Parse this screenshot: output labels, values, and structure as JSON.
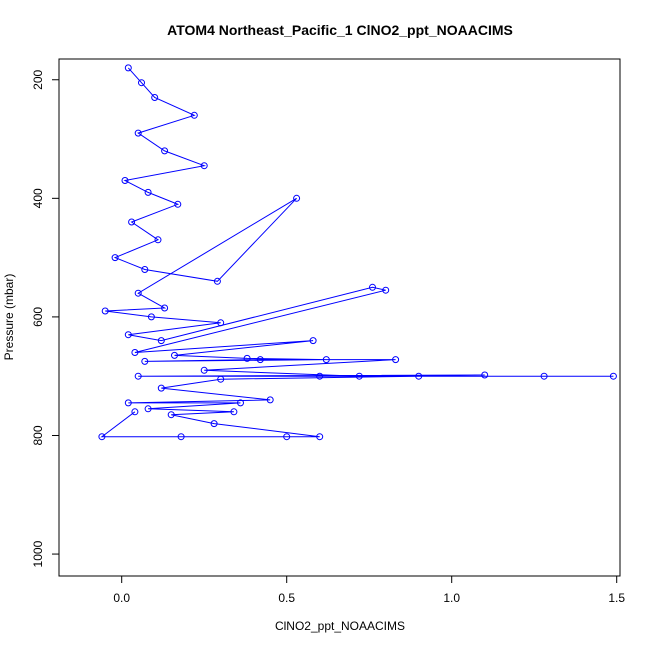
{
  "chart_data": {
    "type": "line",
    "title": "ATOM4 Northeast_Pacific_1 ClNO2_ppt_NOAACIMS",
    "xlabel": "ClNO2_ppt_NOAACIMS",
    "ylabel": "Pressure (mbar)",
    "xlim": [
      -0.19,
      1.51
    ],
    "ylim": [
      1037,
      165
    ],
    "y_reversed": true,
    "xticks": [
      0.0,
      0.5,
      1.0,
      1.5
    ],
    "xtick_labels": [
      "0.0",
      "0.5",
      "1.0",
      "1.5"
    ],
    "yticks": [
      200,
      400,
      600,
      800,
      1000
    ],
    "ytick_labels": [
      "200",
      "400",
      "600",
      "800",
      "1000"
    ],
    "grid": false,
    "legend": "none",
    "marker": "open-circle",
    "series": [
      {
        "color": "#0000ff",
        "x": [
          0.02,
          0.06,
          0.1,
          0.22,
          0.05,
          0.13,
          0.25,
          0.01,
          0.08,
          0.17,
          0.03,
          0.11,
          -0.02,
          0.07,
          0.29,
          0.53,
          0.05,
          0.13,
          -0.05,
          0.09,
          0.3,
          0.02,
          0.12,
          0.76,
          0.8,
          0.04,
          0.58,
          0.16,
          0.38,
          0.62,
          0.07,
          0.42,
          0.83,
          0.25,
          0.72,
          1.1,
          0.05,
          0.6,
          1.28,
          1.49,
          0.9,
          0.3,
          0.12,
          0.45,
          0.02,
          0.36,
          0.08,
          0.34,
          0.15,
          0.28,
          0.6,
          0.5,
          0.18,
          -0.06,
          0.04
        ],
        "y": [
          180,
          205,
          230,
          260,
          290,
          320,
          345,
          370,
          390,
          410,
          440,
          470,
          500,
          520,
          540,
          400,
          560,
          585,
          590,
          600,
          610,
          630,
          640,
          550,
          555,
          660,
          640,
          665,
          670,
          672,
          675,
          672,
          672,
          690,
          700,
          698,
          700,
          700,
          700,
          700,
          700,
          705,
          720,
          740,
          745,
          745,
          755,
          760,
          765,
          780,
          802,
          802,
          802,
          802,
          760
        ]
      }
    ]
  }
}
